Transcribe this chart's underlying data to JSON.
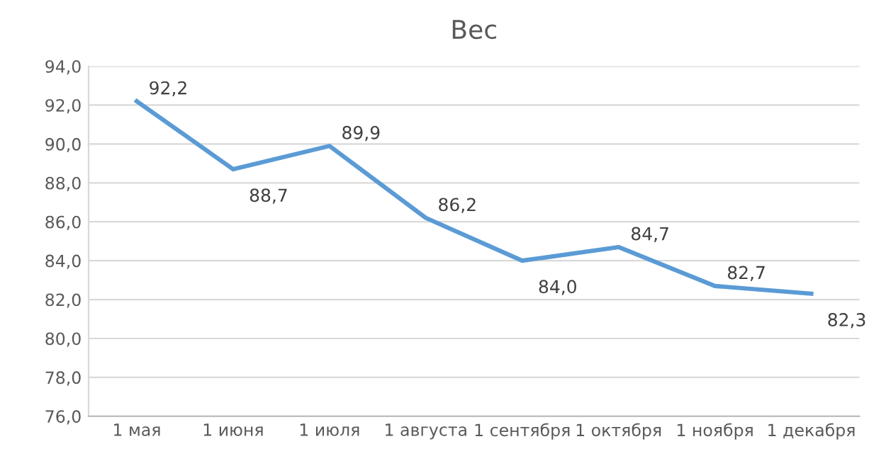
{
  "chart_data": {
    "type": "line",
    "title": "Вес",
    "categories": [
      "1 мая",
      "1 июня",
      "1 июля",
      "1 августа",
      "1 сентября",
      "1 октября",
      "1 ноября",
      "1 декабря"
    ],
    "series": [
      {
        "color": "#5b9bd5",
        "values": [
          92.2,
          88.7,
          89.9,
          86.2,
          84.0,
          84.7,
          82.7,
          82.3
        ],
        "value_labels": [
          "92,2",
          "88,7",
          "89,9",
          "86,2",
          "84,0",
          "84,7",
          "82,7",
          "82,3"
        ]
      }
    ],
    "ylim": [
      76,
      94
    ],
    "yticks": [
      {
        "value": 76,
        "label": "76,0"
      },
      {
        "value": 78,
        "label": "78,0"
      },
      {
        "value": 80,
        "label": "80,0"
      },
      {
        "value": 82,
        "label": "82,0"
      },
      {
        "value": 84,
        "label": "84,0"
      },
      {
        "value": 86,
        "label": "86,0"
      },
      {
        "value": 88,
        "label": "88,0"
      },
      {
        "value": 90,
        "label": "90,0"
      },
      {
        "value": 92,
        "label": "92,0"
      },
      {
        "value": 94,
        "label": "94,0"
      }
    ],
    "grid": "y",
    "legend": false,
    "marker": "none",
    "line_style": "solid"
  }
}
